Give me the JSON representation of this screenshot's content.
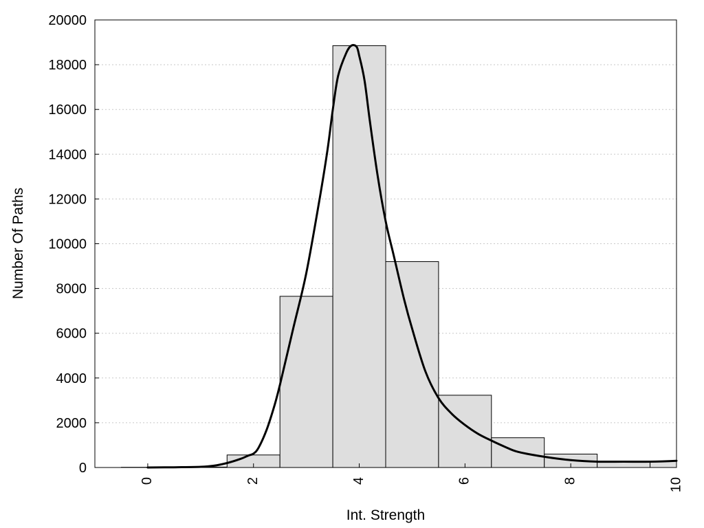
{
  "chart_data": {
    "type": "bar",
    "title": "",
    "xlabel": "Int. Strength",
    "ylabel": "Number Of Paths",
    "xlim": [
      -1,
      10
    ],
    "ylim": [
      0,
      20000
    ],
    "grid": "horizontal dotted",
    "legend": "none",
    "x_ticks": [
      "0",
      "2",
      "4",
      "6",
      "8",
      "10"
    ],
    "y_ticks": [
      "0",
      "2000",
      "4000",
      "6000",
      "8000",
      "10000",
      "12000",
      "14000",
      "16000",
      "18000",
      "20000"
    ],
    "bar_width": 1,
    "bars": [
      {
        "x": 0,
        "value": 10
      },
      {
        "x": 1,
        "value": 20
      },
      {
        "x": 2,
        "value": 560
      },
      {
        "x": 3,
        "value": 7650
      },
      {
        "x": 4,
        "value": 18850
      },
      {
        "x": 5,
        "value": 9200
      },
      {
        "x": 6,
        "value": 3230
      },
      {
        "x": 7,
        "value": 1330
      },
      {
        "x": 8,
        "value": 600
      },
      {
        "x": 9,
        "value": 290
      },
      {
        "x": 10,
        "value": 290
      }
    ],
    "curve": {
      "x": [
        0,
        0.5,
        1,
        1.25,
        1.5,
        1.75,
        1.9,
        2,
        2.1,
        2.25,
        2.4,
        2.5,
        2.75,
        3,
        3.25,
        3.4,
        3.5,
        3.6,
        3.75,
        3.85,
        3.95,
        4,
        4.1,
        4.2,
        4.35,
        4.5,
        4.65,
        4.85,
        5,
        5.25,
        5.5,
        5.75,
        6,
        6.25,
        6.5,
        6.75,
        7,
        7.5,
        8,
        8.5,
        9,
        9.5,
        10
      ],
      "y": [
        0,
        10,
        30,
        80,
        200,
        380,
        530,
        620,
        900,
        1700,
        2800,
        3700,
        6200,
        8700,
        12000,
        14200,
        16000,
        17500,
        18500,
        18850,
        18800,
        18400,
        17300,
        15500,
        13000,
        11000,
        9500,
        7500,
        6200,
        4300,
        3100,
        2400,
        1900,
        1500,
        1200,
        930,
        700,
        480,
        330,
        260,
        260,
        260,
        300
      ]
    },
    "colors": {
      "bar_fill": "#dedede",
      "bar_stroke": "#000000",
      "curve": "#000000"
    }
  }
}
